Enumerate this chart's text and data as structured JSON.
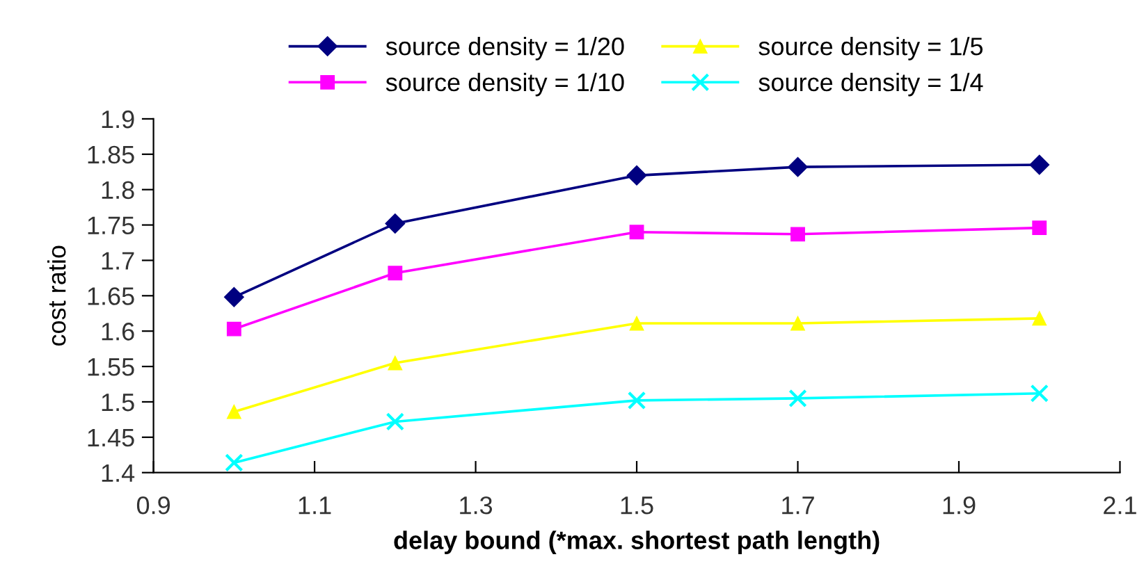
{
  "chart_data": {
    "type": "line",
    "xlabel": "delay bound (*max. shortest path length)",
    "ylabel": "cost ratio",
    "x": [
      1.0,
      1.2,
      1.5,
      1.7,
      2.0
    ],
    "xlim": [
      0.9,
      2.1
    ],
    "xticks": [
      0.9,
      1.1,
      1.3,
      1.5,
      1.7,
      1.9,
      2.1
    ],
    "ylim": [
      1.4,
      1.9
    ],
    "yticks": [
      1.4,
      1.45,
      1.5,
      1.55,
      1.6,
      1.65,
      1.7,
      1.75,
      1.8,
      1.85,
      1.9
    ],
    "grid": false,
    "legend": "top",
    "line_style": "solid",
    "series": [
      {
        "name": "source density = 1/20",
        "color": "#000080",
        "marker": "diamond",
        "values": [
          1.648,
          1.752,
          1.82,
          1.832,
          1.835
        ]
      },
      {
        "name": "source density = 1/10",
        "color": "#ff00ff",
        "marker": "square",
        "values": [
          1.603,
          1.682,
          1.74,
          1.737,
          1.746
        ]
      },
      {
        "name": "source density = 1/5",
        "color": "#ffff00",
        "marker": "triangle",
        "values": [
          1.486,
          1.555,
          1.611,
          1.611,
          1.618
        ]
      },
      {
        "name": "source density = 1/4",
        "color": "#00ffff",
        "marker": "cross",
        "values": [
          1.414,
          1.472,
          1.502,
          1.505,
          1.512
        ]
      }
    ]
  }
}
